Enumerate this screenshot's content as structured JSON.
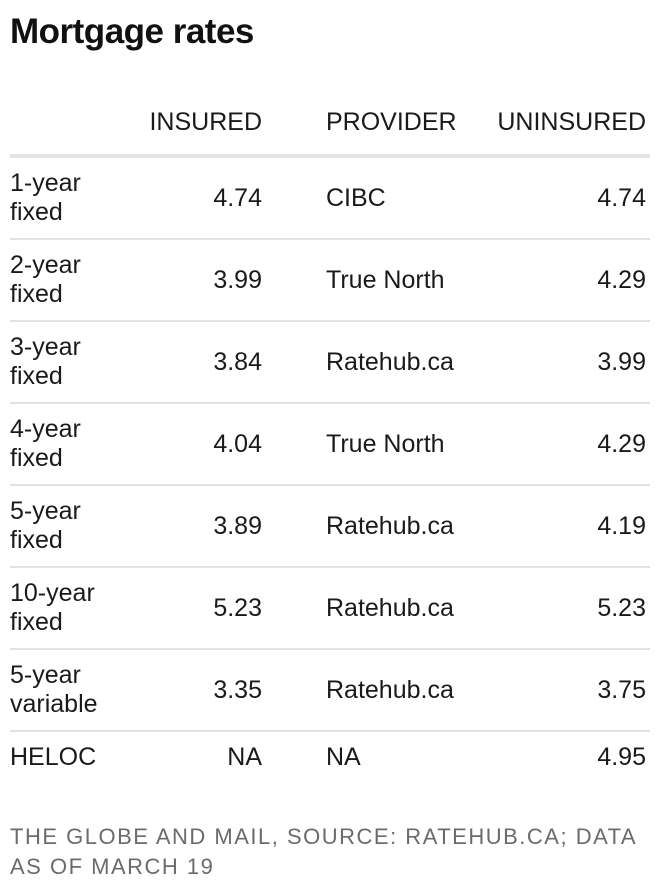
{
  "title": "Mortgage rates",
  "footer": "THE GLOBE AND MAIL, SOURCE: RATEHUB.CA; DATA AS OF MARCH 19",
  "chart_data": {
    "type": "table",
    "columns": [
      "",
      "INSURED",
      "PROVIDER",
      "UNINSURED"
    ],
    "rows": [
      {
        "term": "1-year fixed",
        "insured": "4.74",
        "provider": "CIBC",
        "uninsured": "4.74"
      },
      {
        "term": "2-year fixed",
        "insured": "3.99",
        "provider": "True North",
        "uninsured": "4.29"
      },
      {
        "term": "3-year fixed",
        "insured": "3.84",
        "provider": "Ratehub.ca",
        "uninsured": "3.99"
      },
      {
        "term": "4-year fixed",
        "insured": "4.04",
        "provider": "True North",
        "uninsured": "4.29"
      },
      {
        "term": "5-year fixed",
        "insured": "3.89",
        "provider": "Ratehub.ca",
        "uninsured": "4.19"
      },
      {
        "term": "10-year fixed",
        "insured": "5.23",
        "provider": "Ratehub.ca",
        "uninsured": "5.23"
      },
      {
        "term": "5-year variable",
        "insured": "3.35",
        "provider": "Ratehub.ca",
        "uninsured": "3.75"
      },
      {
        "term": "HELOC",
        "insured": "NA",
        "provider": "NA",
        "uninsured": "4.95"
      }
    ]
  }
}
